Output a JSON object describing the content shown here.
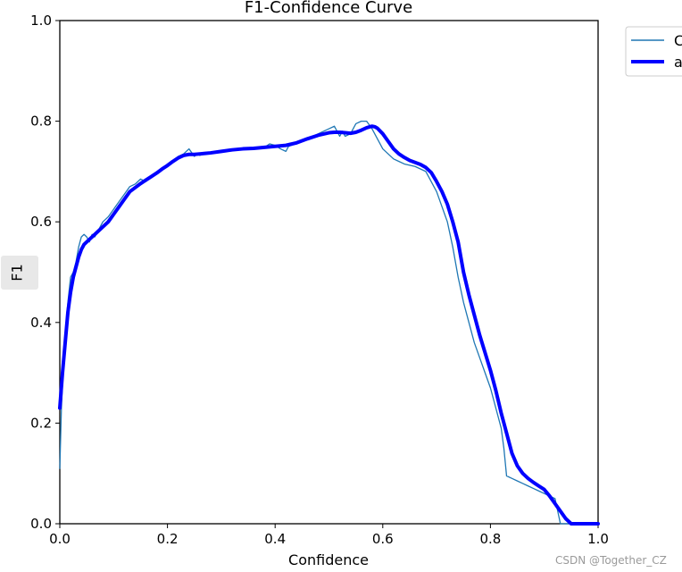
{
  "chart_data": {
    "type": "line",
    "title": "F1-Confidence Curve",
    "xlabel": "Confidence",
    "ylabel": "F1",
    "xlim": [
      0.0,
      1.0
    ],
    "ylim": [
      0.0,
      1.0
    ],
    "xticks": [
      "0.0",
      "0.2",
      "0.4",
      "0.6",
      "0.8",
      "1.0"
    ],
    "yticks": [
      "0.0",
      "0.2",
      "0.4",
      "0.6",
      "0.8",
      "1.0"
    ],
    "grid": false,
    "legend_position": "outside-top-right",
    "series": [
      {
        "name": "C",
        "color": "#1f77b4",
        "style": "thin",
        "x": [
          0.0,
          0.003,
          0.006,
          0.01,
          0.015,
          0.02,
          0.025,
          0.03,
          0.035,
          0.04,
          0.045,
          0.05,
          0.055,
          0.06,
          0.065,
          0.07,
          0.075,
          0.08,
          0.09,
          0.1,
          0.11,
          0.12,
          0.13,
          0.14,
          0.15,
          0.16,
          0.17,
          0.18,
          0.19,
          0.2,
          0.21,
          0.22,
          0.23,
          0.24,
          0.25,
          0.255,
          0.26,
          0.27,
          0.28,
          0.29,
          0.3,
          0.32,
          0.34,
          0.36,
          0.38,
          0.39,
          0.4,
          0.41,
          0.42,
          0.425,
          0.43,
          0.44,
          0.46,
          0.48,
          0.5,
          0.51,
          0.52,
          0.525,
          0.53,
          0.54,
          0.545,
          0.55,
          0.56,
          0.57,
          0.58,
          0.59,
          0.6,
          0.61,
          0.62,
          0.63,
          0.64,
          0.66,
          0.68,
          0.69,
          0.7,
          0.71,
          0.72,
          0.73,
          0.74,
          0.75,
          0.76,
          0.77,
          0.78,
          0.79,
          0.8,
          0.81,
          0.82,
          0.825,
          0.83,
          0.84,
          0.85,
          0.86,
          0.87,
          0.88,
          0.89,
          0.9,
          0.91,
          0.92,
          0.93,
          0.935,
          0.938,
          0.94,
          0.96,
          1.0
        ],
        "y": [
          0.11,
          0.23,
          0.3,
          0.38,
          0.44,
          0.49,
          0.5,
          0.52,
          0.55,
          0.57,
          0.575,
          0.57,
          0.56,
          0.575,
          0.57,
          0.58,
          0.59,
          0.6,
          0.61,
          0.625,
          0.64,
          0.655,
          0.67,
          0.675,
          0.685,
          0.68,
          0.69,
          0.695,
          0.705,
          0.715,
          0.72,
          0.73,
          0.735,
          0.745,
          0.73,
          0.735,
          0.732,
          0.735,
          0.737,
          0.739,
          0.74,
          0.742,
          0.744,
          0.746,
          0.748,
          0.755,
          0.752,
          0.745,
          0.74,
          0.75,
          0.752,
          0.757,
          0.765,
          0.775,
          0.785,
          0.79,
          0.77,
          0.78,
          0.77,
          0.775,
          0.785,
          0.795,
          0.8,
          0.8,
          0.785,
          0.765,
          0.745,
          0.735,
          0.725,
          0.72,
          0.715,
          0.71,
          0.7,
          0.68,
          0.66,
          0.63,
          0.6,
          0.55,
          0.49,
          0.44,
          0.4,
          0.36,
          0.33,
          0.3,
          0.27,
          0.23,
          0.19,
          0.15,
          0.095,
          0.09,
          0.085,
          0.08,
          0.075,
          0.07,
          0.065,
          0.06,
          0.055,
          0.05,
          0.0,
          0.0,
          0.0,
          0.0,
          0.0,
          0.0
        ]
      },
      {
        "name": "a",
        "color": "#0000ff",
        "style": "thick",
        "x": [
          0.0,
          0.005,
          0.01,
          0.015,
          0.02,
          0.025,
          0.03,
          0.035,
          0.04,
          0.045,
          0.05,
          0.06,
          0.07,
          0.08,
          0.09,
          0.1,
          0.11,
          0.12,
          0.13,
          0.14,
          0.15,
          0.16,
          0.17,
          0.18,
          0.19,
          0.2,
          0.21,
          0.22,
          0.23,
          0.24,
          0.25,
          0.26,
          0.27,
          0.28,
          0.3,
          0.32,
          0.34,
          0.36,
          0.38,
          0.4,
          0.42,
          0.44,
          0.46,
          0.48,
          0.5,
          0.51,
          0.52,
          0.53,
          0.54,
          0.55,
          0.56,
          0.57,
          0.58,
          0.585,
          0.59,
          0.6,
          0.61,
          0.62,
          0.63,
          0.64,
          0.65,
          0.66,
          0.67,
          0.68,
          0.69,
          0.7,
          0.71,
          0.72,
          0.73,
          0.74,
          0.75,
          0.76,
          0.77,
          0.78,
          0.79,
          0.8,
          0.81,
          0.82,
          0.83,
          0.84,
          0.85,
          0.86,
          0.87,
          0.88,
          0.89,
          0.9,
          0.91,
          0.92,
          0.93,
          0.94,
          0.95,
          0.96,
          0.97,
          1.0
        ],
        "y": [
          0.23,
          0.3,
          0.36,
          0.42,
          0.46,
          0.49,
          0.51,
          0.53,
          0.545,
          0.555,
          0.56,
          0.57,
          0.58,
          0.59,
          0.6,
          0.615,
          0.63,
          0.645,
          0.66,
          0.668,
          0.676,
          0.683,
          0.69,
          0.697,
          0.705,
          0.712,
          0.72,
          0.727,
          0.732,
          0.734,
          0.734,
          0.735,
          0.736,
          0.737,
          0.74,
          0.743,
          0.745,
          0.746,
          0.748,
          0.75,
          0.752,
          0.757,
          0.765,
          0.772,
          0.777,
          0.778,
          0.778,
          0.777,
          0.776,
          0.778,
          0.782,
          0.787,
          0.79,
          0.789,
          0.786,
          0.775,
          0.76,
          0.745,
          0.735,
          0.728,
          0.722,
          0.718,
          0.714,
          0.708,
          0.698,
          0.68,
          0.66,
          0.635,
          0.6,
          0.56,
          0.5,
          0.455,
          0.415,
          0.375,
          0.34,
          0.305,
          0.265,
          0.22,
          0.18,
          0.14,
          0.115,
          0.1,
          0.09,
          0.082,
          0.075,
          0.068,
          0.055,
          0.04,
          0.025,
          0.01,
          0.0,
          0.0,
          0.0,
          0.0
        ]
      }
    ]
  },
  "watermark": "CSDN @Together_CZ"
}
